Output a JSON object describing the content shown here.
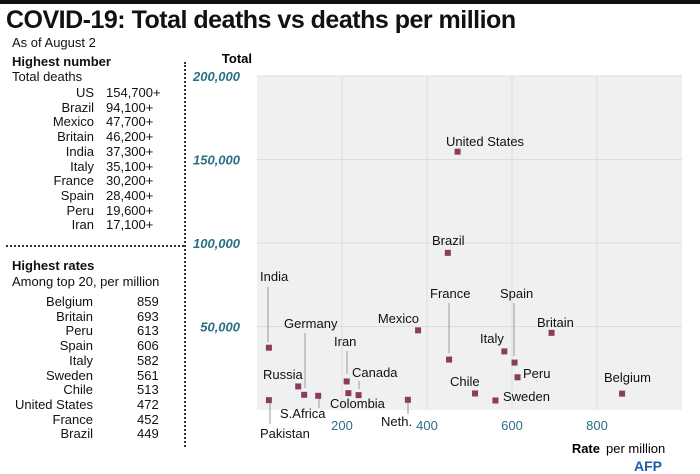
{
  "title": "COVID-19: Total deaths vs deaths per million",
  "subtitle": "As of August 2",
  "highest_number": {
    "heading": "Highest number",
    "subheading": "Total deaths",
    "rows": [
      {
        "country": "US",
        "value": "154,700+"
      },
      {
        "country": "Brazil",
        "value": "94,100+"
      },
      {
        "country": "Mexico",
        "value": "47,700+"
      },
      {
        "country": "Britain",
        "value": "46,200+"
      },
      {
        "country": "India",
        "value": "37,300+"
      },
      {
        "country": "Italy",
        "value": "35,100+"
      },
      {
        "country": "France",
        "value": "30,200+"
      },
      {
        "country": "Spain",
        "value": "28,400+"
      },
      {
        "country": "Peru",
        "value": "19,600+"
      },
      {
        "country": "Iran",
        "value": "17,100+"
      }
    ]
  },
  "highest_rates": {
    "heading": "Highest rates",
    "subheading": "Among top 20, per million",
    "rows": [
      {
        "country": "Belgium",
        "value": "859"
      },
      {
        "country": "Britain",
        "value": "693"
      },
      {
        "country": "Peru",
        "value": "613"
      },
      {
        "country": "Spain",
        "value": "606"
      },
      {
        "country": "Italy",
        "value": "582"
      },
      {
        "country": "Sweden",
        "value": "561"
      },
      {
        "country": "Chile",
        "value": "513"
      },
      {
        "country": "United States",
        "value": "472"
      },
      {
        "country": "France",
        "value": "452"
      },
      {
        "country": "Brazil",
        "value": "449"
      }
    ]
  },
  "logo": "AFP",
  "chart_data": {
    "type": "scatter",
    "ylabel": "Total",
    "xlabel_bold": "Rate",
    "xlabel": "per million",
    "xlim": [
      0,
      1000
    ],
    "ylim": [
      0,
      200000
    ],
    "xticks": [
      200,
      400,
      600,
      800
    ],
    "xtick_labels": [
      "200",
      "400",
      "600",
      "800"
    ],
    "yticks": [
      50000,
      100000,
      150000,
      200000
    ],
    "ytick_labels": [
      "50,000",
      "100,000",
      "150,000",
      "200,000"
    ],
    "grid": true,
    "colors": {
      "point": "#8b3a62",
      "tick": "#2a6f86",
      "plot_bg": "#f0f0f0",
      "grid": "#dddddd"
    },
    "points": [
      {
        "label": "United States",
        "x": 472,
        "y": 154700
      },
      {
        "label": "Brazil",
        "x": 449,
        "y": 94100
      },
      {
        "label": "India",
        "x": 28,
        "y": 37300
      },
      {
        "label": "Germany",
        "x": 111,
        "y": 9100
      },
      {
        "label": "Mexico",
        "x": 379,
        "y": 47700
      },
      {
        "label": "France",
        "x": 452,
        "y": 30200
      },
      {
        "label": "Spain",
        "x": 606,
        "y": 28400
      },
      {
        "label": "Britain",
        "x": 693,
        "y": 46200
      },
      {
        "label": "Italy",
        "x": 582,
        "y": 35100
      },
      {
        "label": "Iran",
        "x": 211,
        "y": 17100
      },
      {
        "label": "Canada",
        "x": 239,
        "y": 8900
      },
      {
        "label": "Russia",
        "x": 97,
        "y": 14100
      },
      {
        "label": "Peru",
        "x": 613,
        "y": 19600
      },
      {
        "label": "Chile",
        "x": 513,
        "y": 9900
      },
      {
        "label": "Belgium",
        "x": 859,
        "y": 9800
      },
      {
        "label": "Sweden",
        "x": 561,
        "y": 5700
      },
      {
        "label": "Colombia",
        "x": 215,
        "y": 10100
      },
      {
        "label": "S.Africa",
        "x": 144,
        "y": 8500
      },
      {
        "label": "Neth.",
        "x": 355,
        "y": 6100
      },
      {
        "label": "Pakistan",
        "x": 28,
        "y": 5900
      }
    ]
  }
}
